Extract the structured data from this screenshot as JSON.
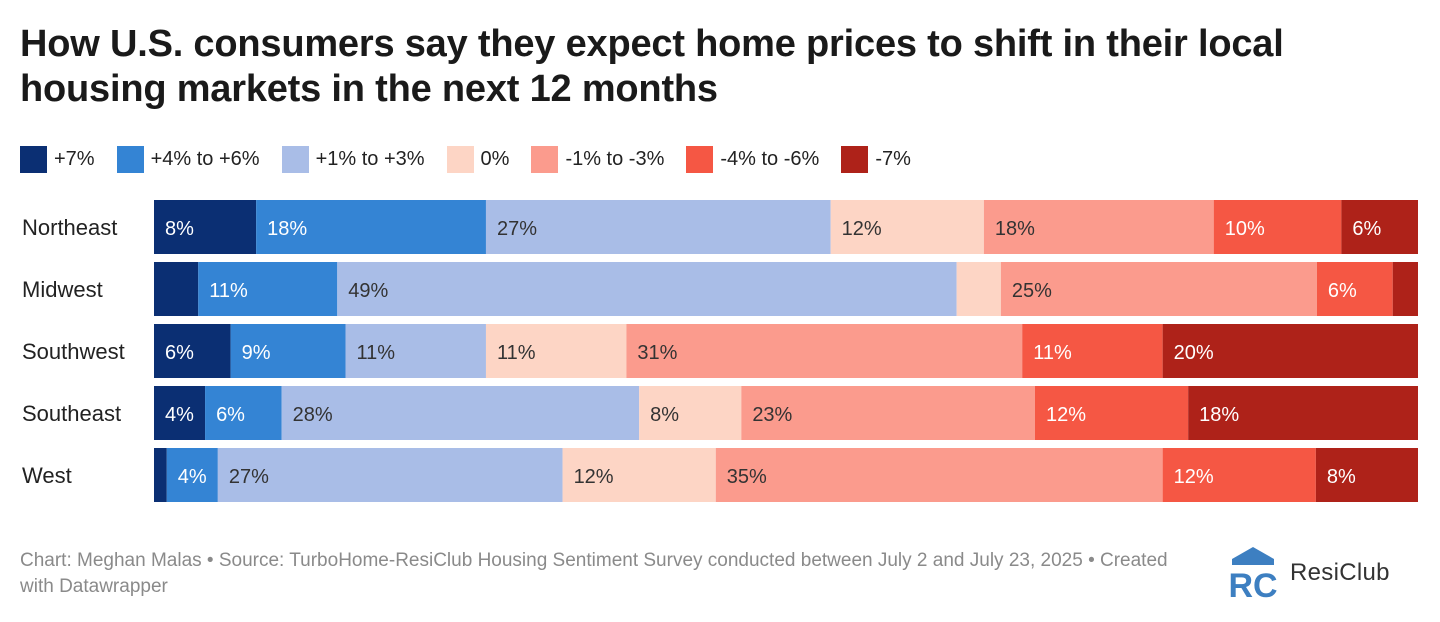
{
  "title": "How U.S. consumers say they expect home prices to shift in their local housing markets in the next 12 months",
  "footer": "Chart: Meghan Malas • Source: TurboHome-ResiClub Housing Sentiment Survey conducted between July 2 and July 23, 2025 • Created with Datawrapper",
  "brand": {
    "name": "ResiClub",
    "logo_text": "RC",
    "logo_color": "#3d7fc1",
    "icon": "resiclub-logo-icon"
  },
  "colors": {
    "+7%": "#0b2f73",
    "+4% to +6%": "#3484d4",
    "+1% to +3%": "#a9bde7",
    "0%": "#fdd5c5",
    "-1% to -3%": "#fb9b8d",
    "-4% to -6%": "#f55744",
    "-7%": "#ae2219"
  },
  "chart_data": {
    "type": "bar",
    "orientation": "horizontal",
    "stacked": true,
    "percent_scale": [
      0,
      100
    ],
    "categories": [
      "Northeast",
      "Midwest",
      "Southwest",
      "Southeast",
      "West"
    ],
    "series": [
      {
        "name": "+7%",
        "values": [
          8,
          3.5,
          6,
          4,
          1
        ],
        "labels": [
          "8%",
          "",
          "6%",
          "4%",
          ""
        ]
      },
      {
        "name": "+4% to +6%",
        "values": [
          18,
          11,
          9,
          6,
          4
        ],
        "labels": [
          "18%",
          "11%",
          "9%",
          "6%",
          "4%"
        ]
      },
      {
        "name": "+1% to +3%",
        "values": [
          27,
          49,
          11,
          28,
          27
        ],
        "labels": [
          "27%",
          "49%",
          "11%",
          "28%",
          "27%"
        ]
      },
      {
        "name": "0%",
        "values": [
          12,
          3.5,
          11,
          8,
          12
        ],
        "labels": [
          "12%",
          "",
          "11%",
          "8%",
          "12%"
        ]
      },
      {
        "name": "-1% to -3%",
        "values": [
          18,
          25,
          31,
          23,
          35
        ],
        "labels": [
          "18%",
          "25%",
          "31%",
          "23%",
          "35%"
        ]
      },
      {
        "name": "-4% to -6%",
        "values": [
          10,
          6,
          11,
          12,
          12
        ],
        "labels": [
          "10%",
          "6%",
          "11%",
          "12%",
          "12%"
        ]
      },
      {
        "name": "-7%",
        "values": [
          6,
          2,
          20,
          18,
          8
        ],
        "labels": [
          "6%",
          "",
          "20%",
          "18%",
          "8%"
        ]
      }
    ],
    "label_colors": {
      "dark": "#ffffff",
      "light": "#333333"
    },
    "dark_series": [
      "+7%",
      "+4% to +6%",
      "-4% to -6%",
      "-7%"
    ],
    "legend_position": "top-left",
    "grid": false
  }
}
